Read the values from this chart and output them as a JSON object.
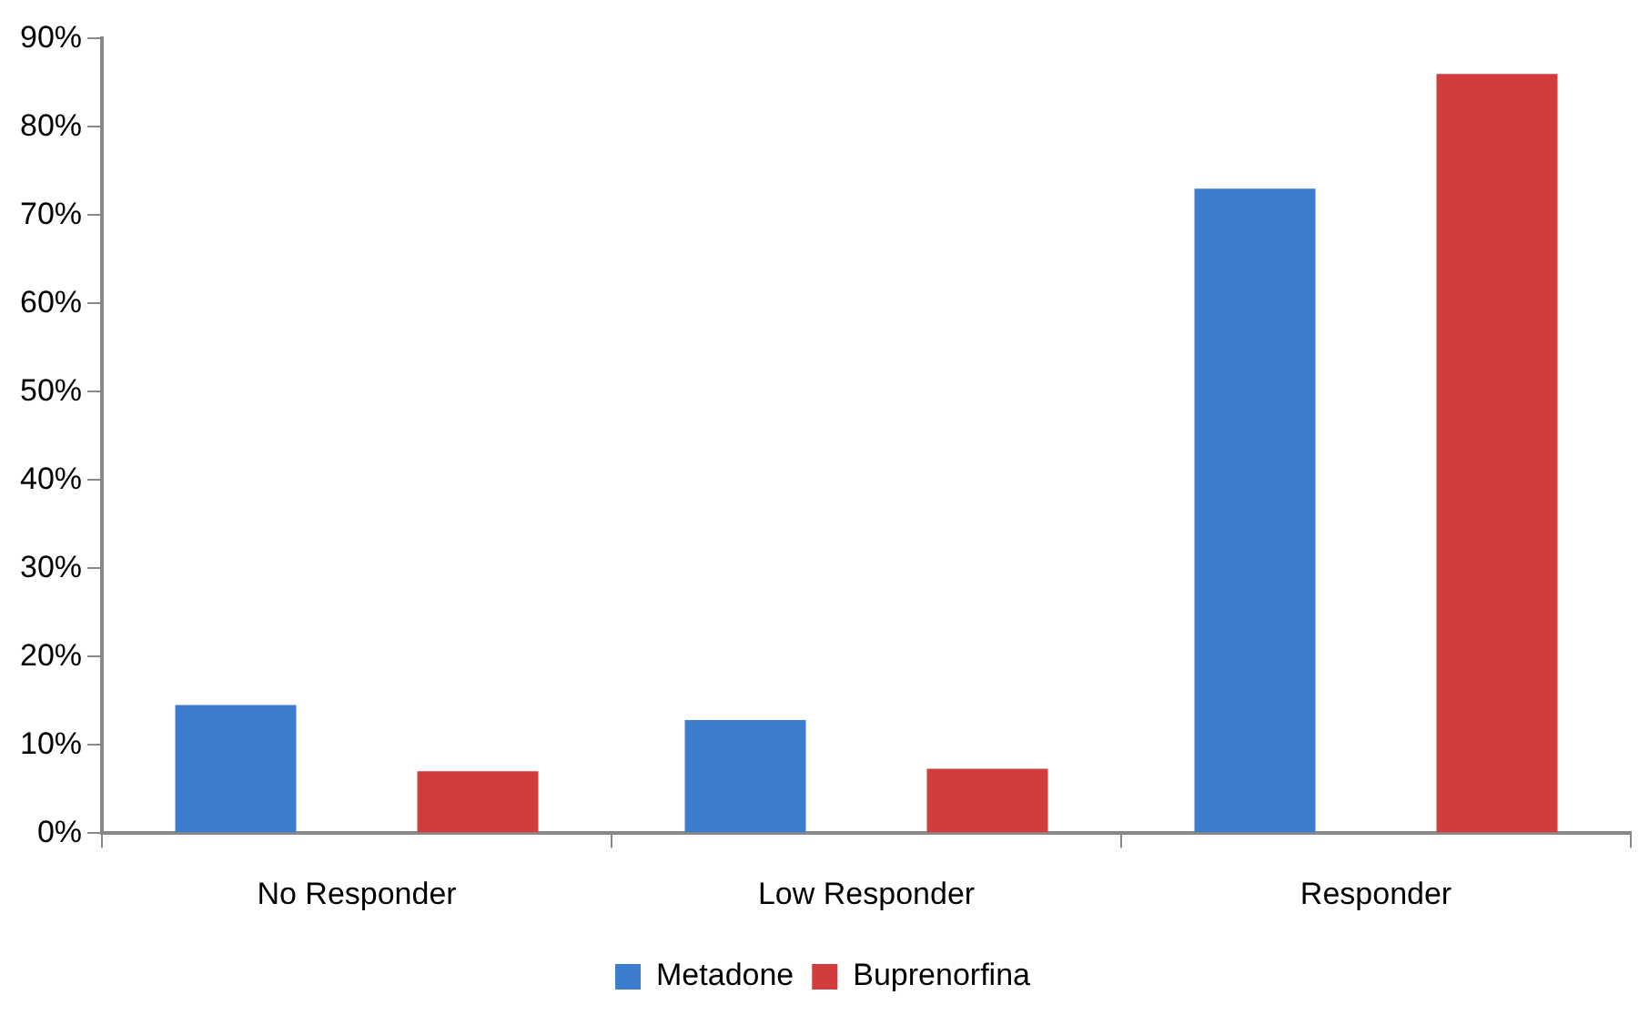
{
  "chart_data": {
    "type": "bar",
    "categories": [
      "No Responder",
      "Low Responder",
      "Responder"
    ],
    "series": [
      {
        "name": "Metadone",
        "color": "#3c7dd0",
        "values": [
          14.5,
          12.8,
          73
        ]
      },
      {
        "name": "Buprenorfina",
        "color": "#d23c3c",
        "values": [
          7,
          7.3,
          86
        ]
      }
    ],
    "ylim": [
      0,
      90
    ],
    "yticks": [
      {
        "value": 0,
        "label": "0%"
      },
      {
        "value": 10,
        "label": "10%"
      },
      {
        "value": 20,
        "label": "20%"
      },
      {
        "value": 30,
        "label": "30%"
      },
      {
        "value": 40,
        "label": "40%"
      },
      {
        "value": 50,
        "label": "50%"
      },
      {
        "value": 60,
        "label": "60%"
      },
      {
        "value": 70,
        "label": "70%"
      },
      {
        "value": 80,
        "label": "80%"
      },
      {
        "value": 90,
        "label": "90%"
      }
    ],
    "grid": false,
    "legend": "bottom"
  }
}
